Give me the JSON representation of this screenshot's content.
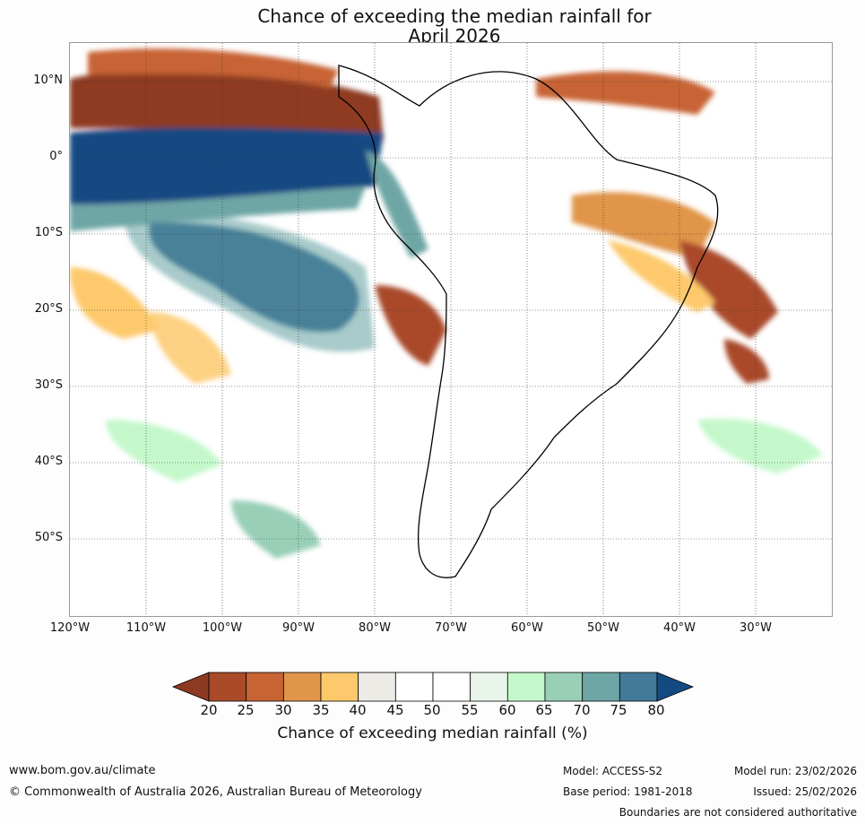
{
  "title": {
    "line1": "Chance of exceeding the median rainfall for",
    "line2": "April 2026"
  },
  "map": {
    "lat_labels": [
      "10°N",
      "0°",
      "10°S",
      "20°S",
      "30°S",
      "40°S",
      "50°S"
    ],
    "lon_labels": [
      "120°W",
      "110°W",
      "100°W",
      "90°W",
      "80°W",
      "70°W",
      "60°W",
      "50°W",
      "40°W",
      "30°W"
    ]
  },
  "legend": {
    "ticks": [
      "20",
      "25",
      "30",
      "35",
      "40",
      "45",
      "50",
      "55",
      "60",
      "65",
      "70",
      "75",
      "80"
    ],
    "colors": [
      "#8e3a22",
      "#a94a29",
      "#c86434",
      "#e0954a",
      "#fdc96c",
      "#ecebe6",
      "#ffffff",
      "#ffffff",
      "#e9f5ea",
      "#c4f8cb",
      "#99cfb7",
      "#6ea6a6",
      "#447a99",
      "#144a82"
    ],
    "label": "Chance of exceeding median rainfall (%)"
  },
  "footer": {
    "url": "www.bom.gov.au/climate",
    "copyright": "© Commonwealth of Australia 2026, Australian Bureau of Meteorology",
    "model": "Model: ACCESS-S2",
    "base_period": "Base period: 1981-2018",
    "model_run": "Model run: 23/02/2026",
    "issued": "Issued: 25/02/2026",
    "disclaimer": "Boundaries are not considered authoritative"
  }
}
